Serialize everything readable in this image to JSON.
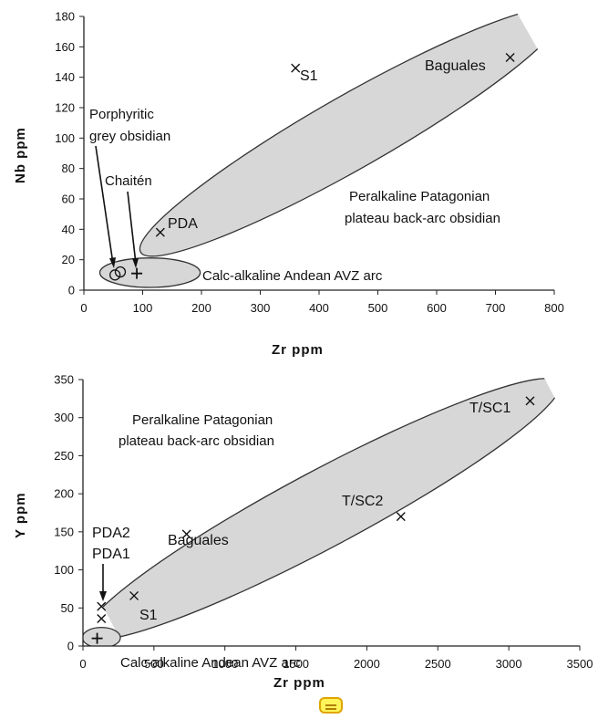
{
  "chart_data": [
    {
      "type": "scatter",
      "title": "",
      "xlabel": "Zr ppm",
      "ylabel": "Nb ppm",
      "xlim": [
        0,
        800
      ],
      "ylim": [
        0,
        180
      ],
      "xticks": [
        0,
        100,
        200,
        300,
        400,
        500,
        600,
        700,
        800
      ],
      "yticks": [
        0,
        20,
        40,
        60,
        80,
        100,
        120,
        140,
        160,
        180
      ],
      "grid": false,
      "series": [
        {
          "marker": "x",
          "points": [
            {
              "label": "S1",
              "x": 360,
              "y": 146
            },
            {
              "label": "Baguales",
              "x": 725,
              "y": 153
            },
            {
              "label": "PDA",
              "x": 130,
              "y": 38
            }
          ]
        },
        {
          "marker": "circle",
          "points": [
            {
              "label": "",
              "x": 53,
              "y": 10
            },
            {
              "label": "",
              "x": 62,
              "y": 12
            }
          ]
        },
        {
          "marker": "plus",
          "points": [
            {
              "label": "",
              "x": 90,
              "y": 11
            }
          ]
        }
      ],
      "annotations": [
        "Porphyritic",
        "grey obsidian",
        "Chaitén",
        "Peralkaline Patagonian",
        "plateau back-arc obsidian",
        "Calc-alkaline Andean AVZ arc"
      ],
      "fields": [
        {
          "label": "Peralkaline Patagonian plateau back-arc obsidian",
          "x_range": [
            110,
            800
          ],
          "y_range": [
            28,
            180
          ]
        },
        {
          "label": "Calc-alkaline Andean AVZ arc",
          "x_range": [
            30,
            195
          ],
          "y_range": [
            3,
            20
          ]
        }
      ]
    },
    {
      "type": "scatter",
      "title": "",
      "xlabel": "Zr ppm",
      "ylabel": "Y ppm",
      "xlim": [
        0,
        3500
      ],
      "ylim": [
        0,
        350
      ],
      "xticks": [
        0,
        500,
        1000,
        1500,
        2000,
        2500,
        3000,
        3500
      ],
      "yticks": [
        0,
        50,
        100,
        150,
        200,
        250,
        300,
        350
      ],
      "grid": false,
      "series": [
        {
          "marker": "x",
          "points": [
            {
              "label": "T/SC1",
              "x": 3150,
              "y": 322
            },
            {
              "label": "T/SC2",
              "x": 2240,
              "y": 170
            },
            {
              "label": "Baguales",
              "x": 730,
              "y": 147
            },
            {
              "label": "S1",
              "x": 360,
              "y": 66
            },
            {
              "label": "PDA2",
              "x": 130,
              "y": 52
            },
            {
              "label": "PDA1",
              "x": 130,
              "y": 36
            }
          ]
        },
        {
          "marker": "plus",
          "points": [
            {
              "label": "",
              "x": 100,
              "y": 10
            }
          ]
        }
      ],
      "annotations": [
        "Peralkaline Patagonian",
        "plateau back-arc obsidian",
        "Calc-alkaline Andean AVZ arc"
      ],
      "fields": [
        {
          "label": "Peralkaline Patagonian plateau back-arc obsidian",
          "x_range": [
            80,
            3300
          ],
          "y_range": [
            20,
            340
          ]
        },
        {
          "label": "Calc-alkaline Andean AVZ arc",
          "x_range": [
            10,
            250
          ],
          "y_range": [
            0,
            22
          ]
        }
      ]
    }
  ],
  "colors": {
    "field_fill": "#d7d7d7",
    "field_stroke": "#333333",
    "axis": "#222222",
    "highlight": "#fff45a"
  },
  "icons": {
    "highlight": "note-icon"
  }
}
